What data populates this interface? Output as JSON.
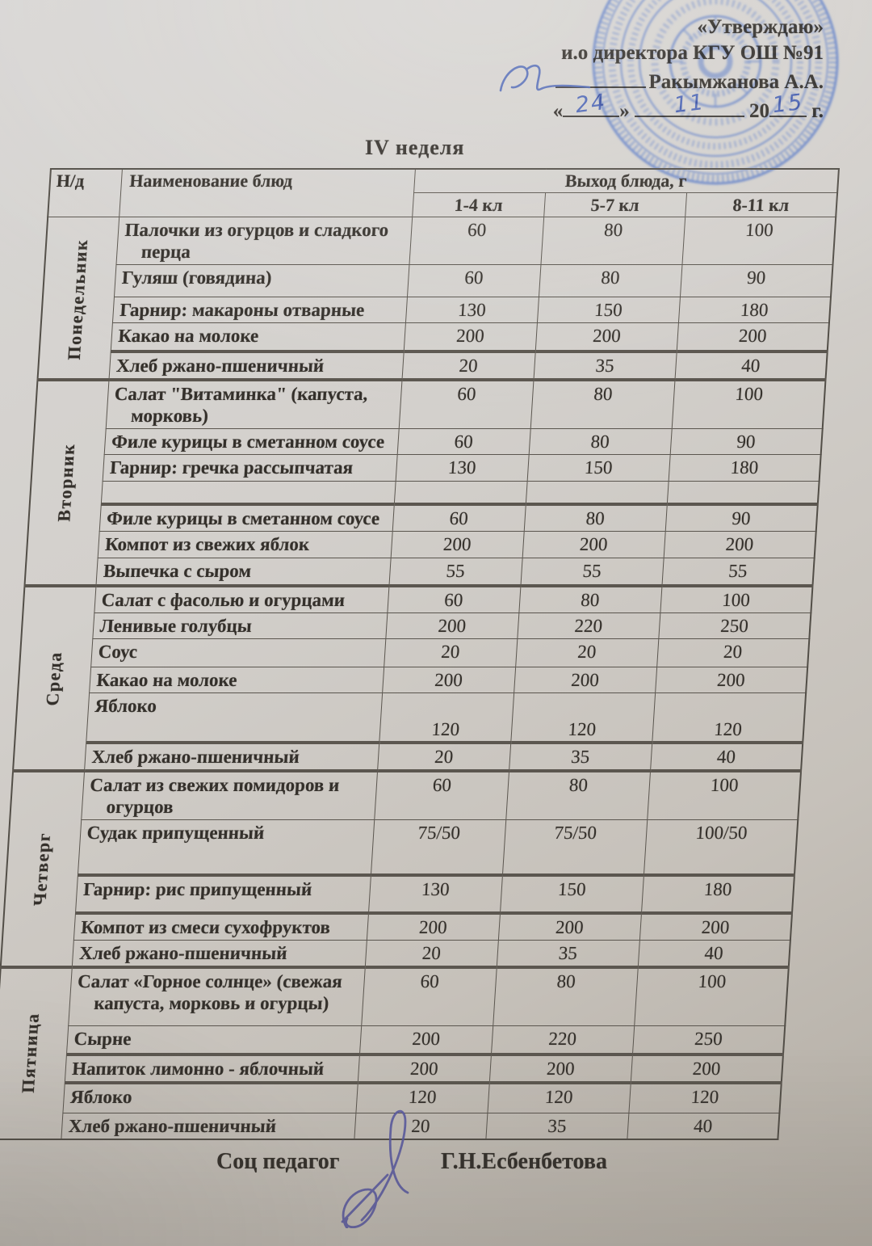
{
  "approval": {
    "line1": "«Утверждаю»",
    "line2": "и.о директора КГУ ОШ №91",
    "name": "Ракымжанова А.А.",
    "quote_open": "«",
    "quote_close": "»",
    "day_hw": "24",
    "month_hw": "11",
    "year_prefix": "20",
    "year_hw": "15",
    "year_suffix": "г."
  },
  "title": "IV неделя",
  "table": {
    "col_no": "Н/д",
    "col_dish": "Наименование блюд",
    "col_output": "Выход блюда, г",
    "subcols": [
      "1-4 кл",
      "5-7 кл",
      "8-11 кл"
    ],
    "days": [
      {
        "label": "Понедельник",
        "rows": [
          {
            "dish": "Палочки из огурцов и сладкого перца",
            "values": [
              "60",
              "80",
              "100"
            ]
          },
          {
            "dish": "Гуляш (говядина)",
            "values": [
              "60",
              "80",
              "90"
            ]
          },
          {
            "dish": "Гарнир: макароны отварные",
            "values": [
              "130",
              "150",
              "180"
            ]
          },
          {
            "dish": "Какао на молоке",
            "values": [
              "200",
              "200",
              "200"
            ]
          },
          {
            "dish": "Хлеб ржано-пшеничный",
            "values": [
              "20",
              "35",
              "40"
            ]
          }
        ]
      },
      {
        "label": "Вторник",
        "rows": [
          {
            "dish": "Салат \"Витаминка\" (капуста, морковь)",
            "values": [
              "60",
              "80",
              "100"
            ]
          },
          {
            "dish": "Филе курицы в сметанном соусе",
            "values": [
              "60",
              "80",
              "90"
            ]
          },
          {
            "dish": "Гарнир: гречка рассыпчатая",
            "values": [
              "130",
              "150",
              "180"
            ]
          },
          {
            "dish": "",
            "values": [
              "",
              "",
              ""
            ]
          },
          {
            "dish": "Филе курицы в сметанном соусе",
            "values": [
              "60",
              "80",
              "90"
            ]
          },
          {
            "dish": "Компот из свежих яблок",
            "values": [
              "200",
              "200",
              "200"
            ]
          },
          {
            "dish": "Выпечка с сыром",
            "values": [
              "55",
              "55",
              "55"
            ]
          }
        ]
      },
      {
        "label": "Среда",
        "rows": [
          {
            "dish": "Салат с фасолью и огурцами",
            "values": [
              "60",
              "80",
              "100"
            ]
          },
          {
            "dish": "Ленивые голубцы",
            "values": [
              "200",
              "220",
              "250"
            ]
          },
          {
            "dish": "Соус",
            "values": [
              "20",
              "20",
              "20"
            ]
          },
          {
            "dish": "Какао на молоке",
            "values": [
              "200",
              "200",
              "200"
            ]
          },
          {
            "dish": "Яблоко",
            "values": [
              "120",
              "120",
              "120"
            ]
          },
          {
            "dish": "Хлеб ржано-пшеничный",
            "values": [
              "20",
              "35",
              "40"
            ]
          }
        ]
      },
      {
        "label": "Четверг",
        "rows": [
          {
            "dish": "Салат из свежих помидоров и огурцов",
            "values": [
              "60",
              "80",
              "100"
            ]
          },
          {
            "dish": "Судак припущенный",
            "values": [
              "75/50",
              "75/50",
              "100/50"
            ]
          },
          {
            "dish": "Гарнир: рис припущенный",
            "values": [
              "130",
              "150",
              "180"
            ]
          },
          {
            "dish": "Компот из смеси сухофруктов",
            "values": [
              "200",
              "200",
              "200"
            ]
          },
          {
            "dish": "Хлеб ржано-пшеничный",
            "values": [
              "20",
              "35",
              "40"
            ]
          }
        ]
      },
      {
        "label": "Пятница",
        "rows": [
          {
            "dish": "Салат «Горное солнце» (свежая капуста, морковь и огурцы)",
            "values": [
              "60",
              "80",
              "100"
            ]
          },
          {
            "dish": "Сырне",
            "values": [
              "200",
              "220",
              "250"
            ]
          },
          {
            "dish": "Напиток лимонно - яблочный",
            "values": [
              "200",
              "200",
              "200"
            ]
          },
          {
            "dish": "Яблоко",
            "values": [
              "120",
              "120",
              "120"
            ]
          },
          {
            "dish": "Хлеб ржано-пшеничный",
            "values": [
              "20",
              "35",
              "40"
            ]
          }
        ]
      }
    ]
  },
  "footer": {
    "role": "Соц педагог",
    "signer": "Г.Н.Есбенбетова"
  },
  "colors": {
    "ink_blue": "#4d66b5",
    "stamp_blue": "#5e7ec6",
    "text": "#34302b"
  }
}
